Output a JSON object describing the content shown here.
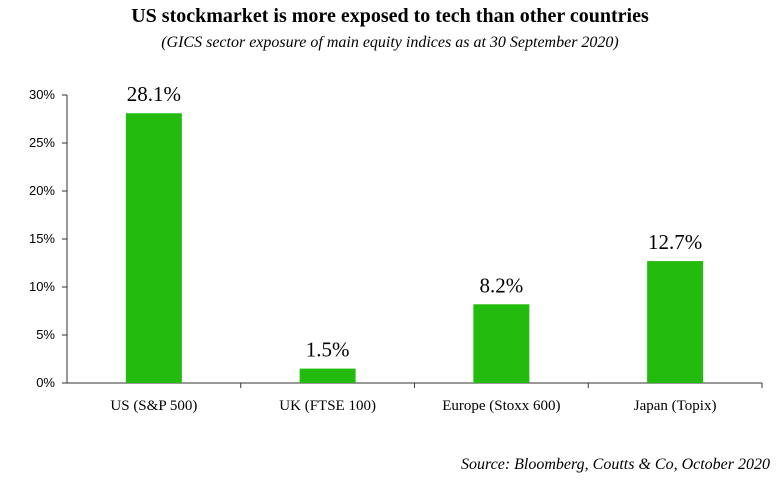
{
  "chart_data": {
    "type": "bar",
    "title": "US stockmarket is more exposed to tech than other countries",
    "subtitle": "(GICS sector exposure of main equity indices as at 30 September 2020)",
    "categories": [
      "US (S&P 500)",
      "UK (FTSE 100)",
      "Europe (Stoxx 600)",
      "Japan (Topix)"
    ],
    "values": [
      28.1,
      1.5,
      8.2,
      12.7
    ],
    "data_labels": [
      "28.1%",
      "1.5%",
      "8.2%",
      "12.7%"
    ],
    "ylim": [
      0,
      30
    ],
    "yticks": [
      0,
      5,
      10,
      15,
      20,
      25,
      30
    ],
    "ytick_labels": [
      "0%",
      "5%",
      "10%",
      "15%",
      "20%",
      "25%",
      "30%"
    ],
    "xlabel": "",
    "ylabel": "",
    "grid": false,
    "legend": "none",
    "bar_color": "#22bb0e",
    "source": "Source: Bloomberg, Coutts & Co, October 2020"
  }
}
